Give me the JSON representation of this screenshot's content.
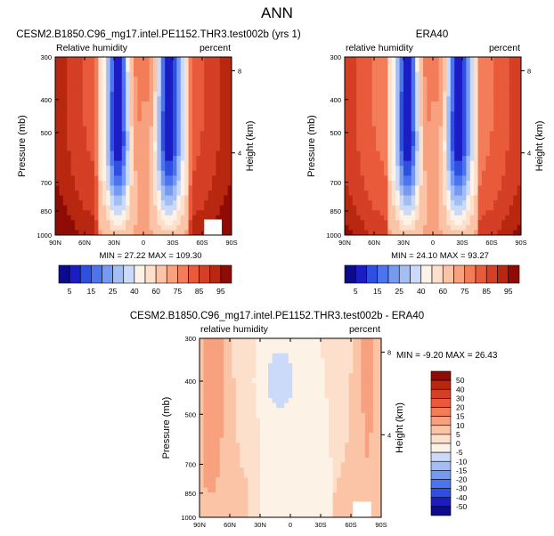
{
  "figure_title": "ANN",
  "colors": {
    "blues": [
      "#0b0b8c",
      "#1c1cc4",
      "#2f4fe0",
      "#4d74ef",
      "#7699f2",
      "#a3bdf5",
      "#cbdaf8"
    ],
    "neutral": "#fdf2e6",
    "reds": [
      "#fde0cc",
      "#fbc4a6",
      "#f8a17e",
      "#f37d58",
      "#e85a3a",
      "#d43f25",
      "#b8270f",
      "#8e0c05"
    ]
  },
  "chart_data": [
    {
      "id": "model",
      "type": "heatmap",
      "title": "CESM2.B1850.C96_mg17.intel.PE1152.THR3.test002b (yrs 1)",
      "left_label": "Relative humidity",
      "right_label": "percent",
      "xlabel": "",
      "ylabel": "Pressure (mb)",
      "right_axis_label": "Height (km)",
      "x_tick_labels": [
        "90N",
        "60N",
        "30N",
        "0",
        "30S",
        "60S",
        "90S"
      ],
      "x_ticks": [
        90,
        60,
        30,
        0,
        -30,
        -60,
        -90
      ],
      "y_tick_labels": [
        "300",
        "400",
        "500",
        "700",
        "850",
        "1000"
      ],
      "y_ticks": [
        300,
        400,
        500,
        700,
        850,
        1000
      ],
      "right_tick_labels": [
        "8",
        "4"
      ],
      "right_ticks": [
        8,
        4
      ],
      "ylim": [
        1000,
        300
      ],
      "xlim": [
        90,
        -90
      ],
      "stats_text": "MIN = 27.22  MAX = 109.30",
      "min": 27.22,
      "max": 109.3,
      "colorbar_labels": [
        "5",
        "15",
        "25",
        "40",
        "60",
        "75",
        "85",
        "95"
      ],
      "levels": [
        5,
        10,
        15,
        20,
        25,
        30,
        40,
        50,
        60,
        70,
        75,
        80,
        85,
        90,
        95
      ]
    },
    {
      "id": "obs",
      "type": "heatmap",
      "title": "ERA40",
      "left_label": "relative humidity",
      "right_label": "percent",
      "xlabel": "",
      "ylabel": "Pressure (mb)",
      "right_axis_label": "Height (km)",
      "x_tick_labels": [
        "90N",
        "60N",
        "30N",
        "0",
        "30S",
        "60S",
        "90S"
      ],
      "x_ticks": [
        90,
        60,
        30,
        0,
        -30,
        -60,
        -90
      ],
      "y_tick_labels": [
        "300",
        "400",
        "500",
        "700",
        "850",
        "1000"
      ],
      "y_ticks": [
        300,
        400,
        500,
        700,
        850,
        1000
      ],
      "right_tick_labels": [
        "8",
        "4"
      ],
      "right_ticks": [
        8,
        4
      ],
      "ylim": [
        1000,
        300
      ],
      "xlim": [
        90,
        -90
      ],
      "stats_text": "MIN = 24.10  MAX = 93.27",
      "min": 24.1,
      "max": 93.27,
      "colorbar_labels": [
        "5",
        "15",
        "25",
        "40",
        "60",
        "75",
        "85",
        "95"
      ],
      "levels": [
        5,
        10,
        15,
        20,
        25,
        30,
        40,
        50,
        60,
        70,
        75,
        80,
        85,
        90,
        95
      ]
    },
    {
      "id": "diff",
      "type": "heatmap",
      "title": "CESM2.B1850.C96_mg17.intel.PE1152.THR3.test002b - ERA40",
      "left_label": "relative humidity",
      "right_label": "percent",
      "xlabel": "",
      "ylabel": "Pressure (mb)",
      "right_axis_label": "Height (km)",
      "x_tick_labels": [
        "90N",
        "60N",
        "30N",
        "0",
        "30S",
        "60S",
        "90S"
      ],
      "x_ticks": [
        90,
        60,
        30,
        0,
        -30,
        -60,
        -90
      ],
      "y_tick_labels": [
        "300",
        "400",
        "500",
        "700",
        "850",
        "1000"
      ],
      "y_ticks": [
        300,
        400,
        500,
        700,
        850,
        1000
      ],
      "right_tick_labels": [
        "8",
        "4"
      ],
      "right_ticks": [
        8,
        4
      ],
      "ylim": [
        1000,
        300
      ],
      "xlim": [
        90,
        -90
      ],
      "stats_text": "MIN = -9.20  MAX = 26.43",
      "min": -9.2,
      "max": 26.43,
      "colorbar_labels": [
        "50",
        "40",
        "30",
        "20",
        "15",
        "10",
        "5",
        "0",
        "-5",
        "-10",
        "-15",
        "-20",
        "-30",
        "-40",
        "-50"
      ],
      "levels": [
        -50,
        -40,
        -30,
        -20,
        -15,
        -10,
        -5,
        0,
        5,
        10,
        15,
        20,
        30,
        40,
        50
      ]
    }
  ]
}
